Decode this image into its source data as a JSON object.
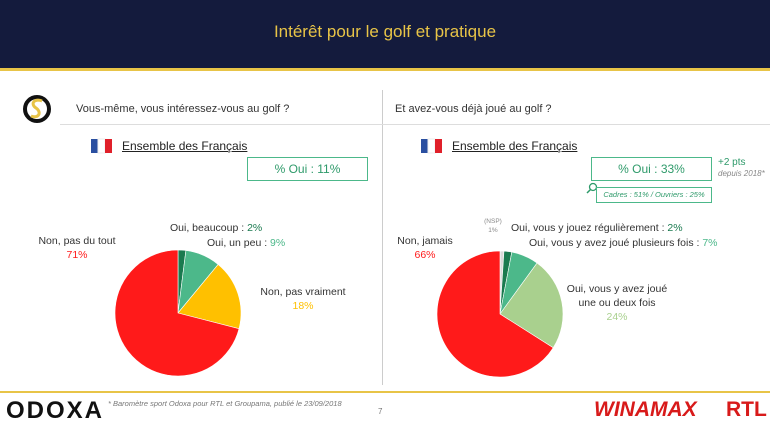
{
  "title": "Intérêt pour le golf et pratique",
  "chart_data": [
    {
      "type": "pie",
      "question": "Vous-même, vous intéressez-vous au golf ?",
      "population": "Ensemble des Français",
      "summary": "% Oui : 11%",
      "categories": [
        "Oui, beaucoup :",
        "Oui, un peu :",
        "Non, pas vraiment",
        "Non, pas du tout"
      ],
      "values": [
        2,
        9,
        18,
        71
      ],
      "value_labels": [
        "2%",
        "9%",
        "18%",
        "71%"
      ],
      "colors": [
        "#1a7a4f",
        "#4cb88a",
        "#ffc000",
        "#ff1a1a"
      ]
    },
    {
      "type": "pie",
      "question": "Et avez-vous déjà joué au golf ?",
      "population": "Ensemble des Français",
      "summary": "% Oui : 33%",
      "change": "+2 pts",
      "change_note": "depuis 2018*",
      "detail": "Cadres : 51% / Ouvriers : 25%",
      "categories": [
        "(NSP)",
        "Oui, vous y jouez régulièrement :",
        "Oui, vous y avez joué plusieurs fois :",
        "Oui, vous y avez joué une ou deux fois",
        "Non, jamais"
      ],
      "values": [
        1,
        2,
        7,
        24,
        66
      ],
      "value_labels": [
        "1%",
        "2%",
        "7%",
        "24%",
        "66%"
      ],
      "colors": [
        "#d9d9d9",
        "#1a7a4f",
        "#4cb88a",
        "#a9d08e",
        "#ff1a1a"
      ]
    }
  ],
  "footer": {
    "logo": "ODOXA",
    "note": "* Baromètre sport Odoxa pour RTL et Groupama, publié le 23/09/2018",
    "page": "7",
    "brand1": "WINAMAX",
    "brand2": "RTL"
  }
}
